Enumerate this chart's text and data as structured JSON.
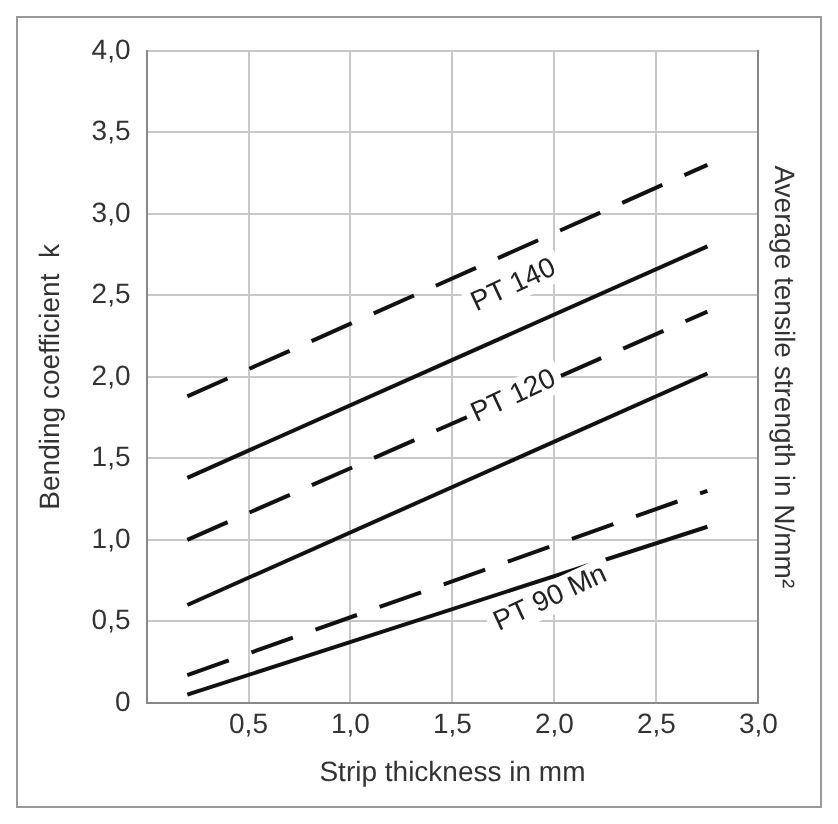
{
  "chart_data": {
    "type": "line",
    "xlabel": "Strip thickness in mm",
    "ylabel": "Bending coefficient  k",
    "y2label": "Average tensile strength in N/mm²",
    "xlim": [
      0,
      3
    ],
    "xticks": [
      {
        "value": 0.5,
        "label": "0,5"
      },
      {
        "value": 1,
        "label": "1,0"
      },
      {
        "value": 1.5,
        "label": "1,5"
      },
      {
        "value": 2,
        "label": "2,0"
      },
      {
        "value": 2.5,
        "label": "2,5"
      },
      {
        "value": 3,
        "label": "3,0"
      }
    ],
    "ylim": [
      0,
      4
    ],
    "yticks": [
      0,
      {
        "value": 0.5,
        "label": "0,5"
      },
      {
        "value": 1,
        "label": "1,0"
      },
      {
        "value": 1.5,
        "label": "1,5"
      },
      {
        "value": 2,
        "label": "2,0"
      },
      {
        "value": 2.5,
        "label": "2,5"
      },
      {
        "value": 3,
        "label": "3,0"
      },
      {
        "value": 3.5,
        "label": "3,5"
      },
      {
        "value": 4,
        "label": "4,0"
      }
    ],
    "grid": true,
    "legend": false,
    "marker": "none",
    "x": [
      0.2,
      2.75
    ],
    "series": [
      {
        "color": "#111111",
        "line_style": "dashed",
        "values": [
          1.88,
          3.3
        ]
      },
      {
        "color": "#111111",
        "line_style": "solid",
        "values": [
          1.38,
          2.8
        ]
      },
      {
        "color": "#111111",
        "line_style": "dashed",
        "values": [
          1.0,
          2.4
        ]
      },
      {
        "color": "#111111",
        "line_style": "solid",
        "values": [
          0.6,
          2.02
        ]
      },
      {
        "color": "#111111",
        "line_style": "dashed",
        "values": [
          0.17,
          1.3
        ]
      },
      {
        "color": "#111111",
        "line_style": "solid",
        "values": [
          0.05,
          1.08
        ]
      }
    ],
    "annotations": [
      "PT 140",
      "PT 120",
      "PT 90 Mn"
    ]
  }
}
